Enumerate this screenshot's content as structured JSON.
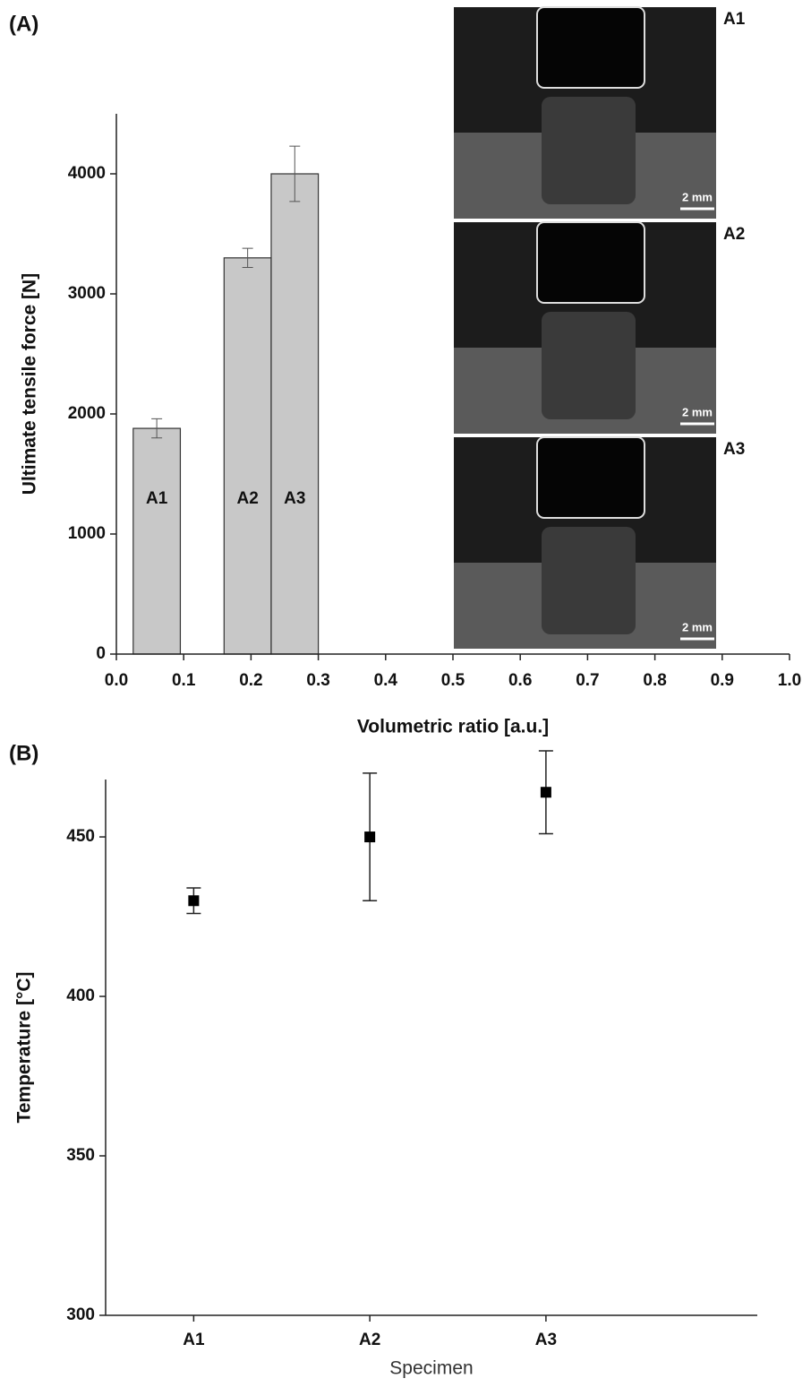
{
  "chart_data": [
    {
      "type": "bar",
      "panel_label": "(A)",
      "x_label": "Volumetric ratio [a.u.]",
      "y_label": "Ultimate tensile force [N]",
      "categories": [
        "A1",
        "A2",
        "A3"
      ],
      "x": [
        0.06,
        0.195,
        0.265
      ],
      "widths": [
        0.07,
        0.07,
        0.07
      ],
      "values": [
        1880,
        3300,
        4000
      ],
      "errors": [
        80,
        80,
        230
      ],
      "color": "#c8c8c8",
      "xlim": [
        0,
        1
      ],
      "xticks": [
        {
          "value": 0,
          "label": "0.0"
        },
        0.1,
        0.2,
        0.3,
        0.4,
        0.5,
        0.6,
        0.7,
        0.8,
        0.9,
        {
          "value": 1,
          "label": "1.0"
        }
      ],
      "ylim": [
        0,
        4500
      ],
      "yticks": [
        0,
        1000,
        2000,
        3000,
        4000
      ],
      "insets": [
        {
          "label": "A1",
          "scale_label": "2 mm"
        },
        {
          "label": "A2",
          "scale_label": "2 mm"
        },
        {
          "label": "A3",
          "scale_label": "2 mm"
        }
      ]
    },
    {
      "type": "scatter",
      "panel_label": "(B)",
      "x_label": "Specimen",
      "y_label": "Temperature [°C]",
      "categories": [
        "A1",
        "A2",
        "A3"
      ],
      "values": [
        430,
        450,
        464
      ],
      "errors": [
        4,
        20,
        13
      ],
      "color": "#000000",
      "ylim": [
        300,
        468
      ],
      "yticks": [
        300,
        350,
        400,
        450
      ]
    }
  ]
}
